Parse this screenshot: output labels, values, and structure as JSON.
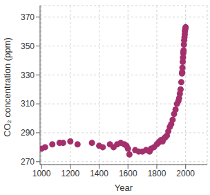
{
  "chart_data": {
    "type": "scatter",
    "x_label": "Year",
    "y_label": "CO₂ concentration (ppm)",
    "x": [
      1000,
      1025,
      1075,
      1125,
      1150,
      1200,
      1250,
      1350,
      1400,
      1425,
      1475,
      1500,
      1525,
      1550,
      1575,
      1590,
      1600,
      1610,
      1650,
      1675,
      1700,
      1725,
      1750,
      1760,
      1780,
      1800,
      1810,
      1820,
      1830,
      1840,
      1850,
      1860,
      1870,
      1880,
      1890,
      1900,
      1910,
      1920,
      1930,
      1940,
      1950,
      1955,
      1960,
      1965,
      1970,
      1975,
      1976,
      1978,
      1980,
      1982,
      1984,
      1985,
      1986,
      1988,
      1990,
      1992,
      1994,
      1995,
      1996,
      1998,
      2000
    ],
    "values": [
      279,
      280,
      282,
      283,
      283,
      284,
      282,
      283,
      281,
      280,
      282,
      280,
      282,
      283,
      282,
      281,
      279,
      275,
      278,
      277,
      277,
      278,
      277,
      279,
      280,
      282,
      283,
      284,
      285,
      284,
      286,
      287,
      288,
      291,
      294,
      296,
      299,
      303,
      306,
      310,
      312,
      314,
      317,
      320,
      325,
      331,
      332,
      335,
      339,
      342,
      345,
      346,
      347,
      351,
      354,
      356,
      358,
      360,
      361,
      362,
      363
    ],
    "color": "#a3306c",
    "marker": "circle",
    "xlim": [
      990,
      2150
    ],
    "ylim": [
      268,
      378
    ],
    "xticks": [
      1000,
      1200,
      1400,
      1600,
      1800,
      2000
    ],
    "yticks": [
      270,
      290,
      310,
      330,
      350,
      370
    ],
    "grid": true
  }
}
